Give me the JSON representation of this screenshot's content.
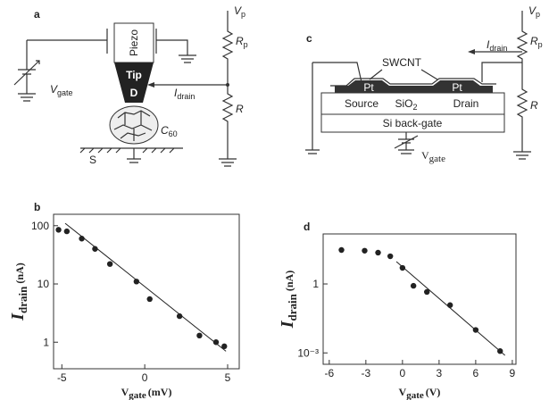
{
  "panel_a": {
    "letter": "a",
    "piezo": "Piezo",
    "tip": "Tip",
    "tip_d": "D",
    "vgate": {
      "main": "V",
      "sub": "gate"
    },
    "idrain": {
      "main": "I",
      "sub": "drain"
    },
    "vp": {
      "main": "V",
      "sub": "p"
    },
    "rp": {
      "main": "R",
      "sub": "p"
    },
    "r": "R",
    "c60": {
      "main": "C",
      "sub": "60"
    },
    "s": "S"
  },
  "panel_c": {
    "letter": "c",
    "swcnt": "SWCNT",
    "idrain": {
      "main": "I",
      "sub": "drain"
    },
    "vp": {
      "main": "V",
      "sub": "p"
    },
    "rp": {
      "main": "R",
      "sub": "p"
    },
    "r": "R",
    "pt_left": "Pt",
    "pt_right": "Pt",
    "source": "Source",
    "sio2": {
      "main": "SiO",
      "sub": "2"
    },
    "drain": "Drain",
    "gate": "Si back-gate",
    "vgate": {
      "main": "V",
      "sub": "gate"
    }
  },
  "chart_data": [
    {
      "type": "scatter",
      "panel": "b",
      "log_y": true,
      "color": "#222",
      "xlabel": {
        "main": "V",
        "sub": "gate",
        "unit": "(mV)"
      },
      "ylabel": {
        "main": "I",
        "sub": "drain",
        "unit": "(nA)"
      },
      "xlim": [
        -5.5,
        5.7
      ],
      "xticks": [
        -5,
        0,
        5
      ],
      "ylim": [
        0.35,
        157
      ],
      "yticks": [
        1,
        10,
        100
      ],
      "x": [
        -5.2,
        -4.7,
        -3.8,
        -3,
        -2.1,
        -0.5,
        0.3,
        2.1,
        3.3,
        4.3,
        4.8
      ],
      "values": [
        85,
        80,
        60,
        40,
        22,
        11,
        5.5,
        2.8,
        1.3,
        1.0,
        0.85
      ],
      "fit_x": [
        -4.8,
        4.9
      ],
      "fit_values": [
        110,
        0.7
      ]
    },
    {
      "type": "scatter",
      "panel": "d",
      "log_y": true,
      "color": "#222",
      "xlabel": {
        "main": "V",
        "sub": "gate",
        "unit": "(V)"
      },
      "ylabel": {
        "main": "I",
        "sub": "drain",
        "unit": "(nA)"
      },
      "xlim": [
        -6.5,
        9.3
      ],
      "xticks": [
        -6,
        -3,
        0,
        3,
        6,
        9
      ],
      "ylim": [
        0.00032,
        150
      ],
      "yticks": [
        1,
        {
          "value": 0.001,
          "label": "10⁻³"
        }
      ],
      "x": [
        -5,
        -3.1,
        -2,
        -1,
        0,
        0.9,
        2,
        3.9,
        6,
        8
      ],
      "values": [
        30,
        28,
        23,
        16,
        5,
        0.83,
        0.45,
        0.12,
        0.01,
        0.0012
      ],
      "fit_x": [
        -0.5,
        8.4
      ],
      "fit_values": [
        9.4,
        0.00078
      ]
    }
  ]
}
